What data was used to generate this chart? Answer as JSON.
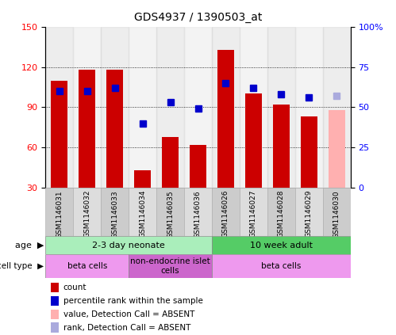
{
  "title": "GDS4937 / 1390503_at",
  "samples": [
    "GSM1146031",
    "GSM1146032",
    "GSM1146033",
    "GSM1146034",
    "GSM1146035",
    "GSM1146036",
    "GSM1146026",
    "GSM1146027",
    "GSM1146028",
    "GSM1146029",
    "GSM1146030"
  ],
  "count_values": [
    110,
    118,
    118,
    43,
    68,
    62,
    133,
    100,
    92,
    83,
    null
  ],
  "rank_values": [
    60,
    60,
    62,
    40,
    53,
    49,
    65,
    62,
    58,
    56,
    null
  ],
  "absent_count": [
    null,
    null,
    null,
    null,
    null,
    null,
    null,
    null,
    null,
    null,
    88
  ],
  "absent_rank": [
    null,
    null,
    null,
    null,
    null,
    null,
    null,
    null,
    null,
    null,
    57
  ],
  "bar_color": "#cc0000",
  "absent_bar_color": "#ffb0b0",
  "dot_color": "#0000cc",
  "absent_dot_color": "#aaaadd",
  "ylim_left": [
    30,
    150
  ],
  "ylim_right": [
    0,
    100
  ],
  "yticks_left": [
    30,
    60,
    90,
    120,
    150
  ],
  "yticks_right": [
    0,
    25,
    50,
    75,
    100
  ],
  "ytick_labels_right": [
    "0",
    "25",
    "50",
    "75",
    "100%"
  ],
  "grid_lines": [
    60,
    90,
    120
  ],
  "age_groups": [
    {
      "label": "2-3 day neonate",
      "start": 0,
      "end": 6,
      "color": "#aaeebb"
    },
    {
      "label": "10 week adult",
      "start": 6,
      "end": 11,
      "color": "#55cc66"
    }
  ],
  "cell_type_groups": [
    {
      "label": "beta cells",
      "start": 0,
      "end": 3,
      "color": "#ee99ee"
    },
    {
      "label": "non-endocrine islet\ncells",
      "start": 3,
      "end": 6,
      "color": "#cc66cc"
    },
    {
      "label": "beta cells",
      "start": 6,
      "end": 11,
      "color": "#ee99ee"
    }
  ],
  "legend_items": [
    {
      "label": "count",
      "color": "#cc0000"
    },
    {
      "label": "percentile rank within the sample",
      "color": "#0000cc"
    },
    {
      "label": "value, Detection Call = ABSENT",
      "color": "#ffb0b0"
    },
    {
      "label": "rank, Detection Call = ABSENT",
      "color": "#aaaadd"
    }
  ]
}
